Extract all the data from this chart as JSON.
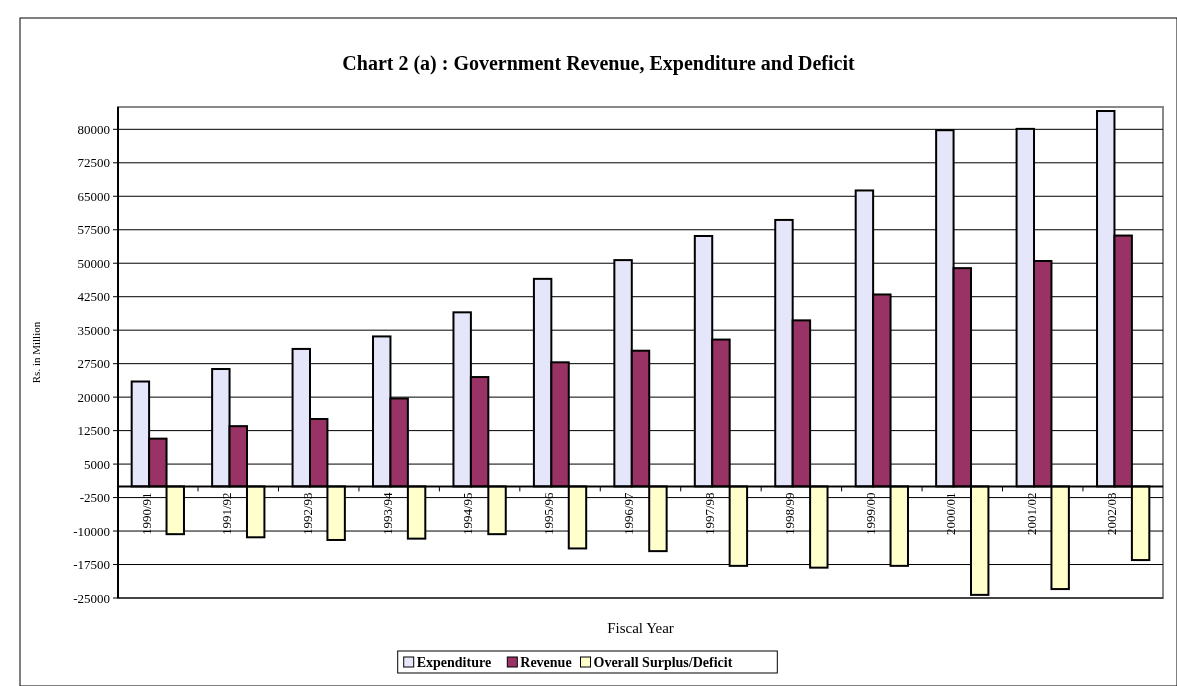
{
  "chart_data": {
    "type": "bar",
    "title": "Chart 2 (a) : Government Revenue, Expenditure and Deficit",
    "xlabel": "Fiscal Year",
    "ylabel": "Rs. in Million",
    "categories": [
      "1990/91",
      "1991/92",
      "1992/93",
      "1993/94",
      "1994/95",
      "1995/96",
      "1996/97",
      "1997/98",
      "1998/99",
      "1999/00",
      "2000/01",
      "2001/02",
      "2002/03"
    ],
    "series": [
      {
        "name": "Expenditure",
        "color": "#e6e6fa",
        "values": [
          23500,
          26300,
          30800,
          33600,
          39000,
          46500,
          50700,
          56100,
          59700,
          66300,
          79800,
          80100,
          84100
        ]
      },
      {
        "name": "Revenue",
        "color": "#993366",
        "values": [
          10700,
          13500,
          15100,
          19700,
          24500,
          27800,
          30400,
          32900,
          37200,
          43000,
          48900,
          50500,
          56200
        ]
      },
      {
        "name": "Overall Surplus/Deficit",
        "color": "#ffffcc",
        "values": [
          -10700,
          -11400,
          -12000,
          -11700,
          -10700,
          -13900,
          -14500,
          -17800,
          -18200,
          -17800,
          -24300,
          -23000,
          -16500
        ]
      }
    ],
    "ylim": [
      -25000,
      85000
    ],
    "yticks": [
      -25000,
      -17500,
      -10000,
      -2500,
      5000,
      12500,
      20000,
      27500,
      35000,
      42500,
      50000,
      57500,
      65000,
      72500,
      80000
    ],
    "grid": "y",
    "legend": "bottom"
  }
}
